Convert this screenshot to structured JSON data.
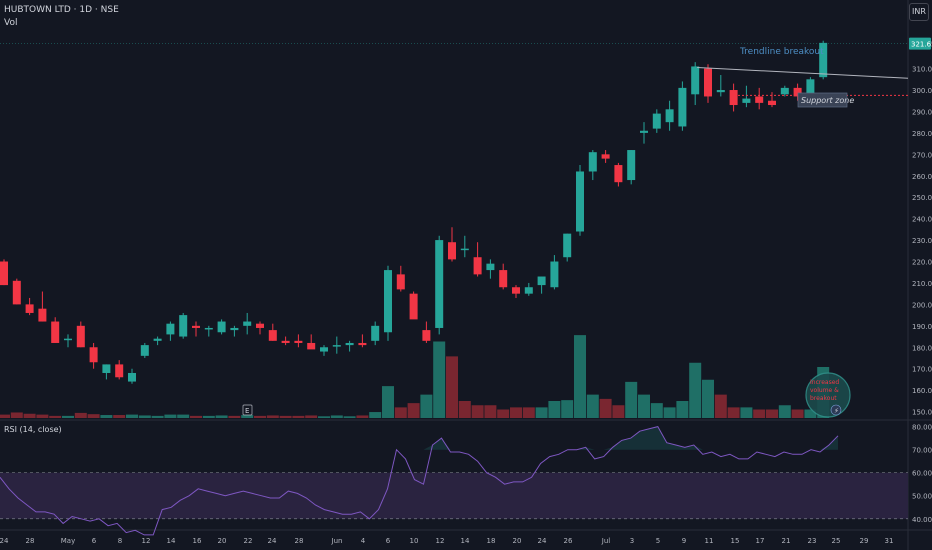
{
  "header": {
    "symbol": "HUBTOWN LTD · 1D · NSE",
    "volume_label": "Vol",
    "currency_button": "INR",
    "rsi_label": "RSI (14, close)"
  },
  "colors": {
    "background": "#131722",
    "up": "#26a69a",
    "down": "#f23645",
    "vol_up": "#1f6f66",
    "vol_down": "#7a2630",
    "rsi_line": "#7e57c2",
    "rsi_band": "#2a2340",
    "annotation_text": "#4d8ec4",
    "support_line": "#f23645"
  },
  "chart_data": [
    {
      "type": "candlestick",
      "title": "HUBTOWN LTD · 1D · NSE",
      "price_axis": {
        "ticks": [
          150,
          160,
          170,
          180,
          190,
          200,
          210,
          220,
          230,
          240,
          250,
          260,
          270,
          280,
          290,
          300,
          310
        ],
        "tick_labels": [
          "150.00",
          "160.00",
          "170.00",
          "180.00",
          "190.00",
          "200.00",
          "210.00",
          "220.00",
          "230.00",
          "240.00",
          "250.00",
          "260.00",
          "270.00",
          "280.00",
          "290.00",
          "300.00",
          "310.00"
        ],
        "last_price_label": "321.65",
        "range": [
          147,
          328
        ]
      },
      "x_axis_labels": [
        "24",
        "28",
        "May",
        "6",
        "8",
        "12",
        "14",
        "16",
        "20",
        "22",
        "24",
        "28",
        "Jun",
        "4",
        "6",
        "10",
        "12",
        "14",
        "18",
        "20",
        "24",
        "26",
        "Jul",
        "3",
        "5",
        "9",
        "11",
        "15",
        "17",
        "21",
        "23",
        "25",
        "29",
        "31"
      ],
      "candles": [
        {
          "o": 220,
          "h": 221,
          "l": 209,
          "c": 209
        },
        {
          "o": 211,
          "h": 212,
          "l": 200,
          "c": 200
        },
        {
          "o": 200,
          "h": 203,
          "l": 195,
          "c": 196
        },
        {
          "o": 198,
          "h": 206,
          "l": 192,
          "c": 192
        },
        {
          "o": 192,
          "h": 194,
          "l": 182,
          "c": 182
        },
        {
          "o": 184,
          "h": 186,
          "l": 180,
          "c": 184
        },
        {
          "o": 190,
          "h": 192,
          "l": 180,
          "c": 180
        },
        {
          "o": 180,
          "h": 182,
          "l": 170,
          "c": 173
        },
        {
          "o": 168,
          "h": 172,
          "l": 165,
          "c": 172
        },
        {
          "o": 172,
          "h": 174,
          "l": 165,
          "c": 166
        },
        {
          "o": 164,
          "h": 170,
          "l": 163,
          "c": 168
        },
        {
          "o": 176,
          "h": 182,
          "l": 175,
          "c": 181
        },
        {
          "o": 183,
          "h": 185,
          "l": 181,
          "c": 184
        },
        {
          "o": 186,
          "h": 192,
          "l": 183,
          "c": 191
        },
        {
          "o": 185,
          "h": 196,
          "l": 184,
          "c": 195
        },
        {
          "o": 190,
          "h": 192,
          "l": 185,
          "c": 189
        },
        {
          "o": 189,
          "h": 190,
          "l": 185,
          "c": 189
        },
        {
          "o": 187,
          "h": 193,
          "l": 186,
          "c": 192
        },
        {
          "o": 188,
          "h": 190,
          "l": 185,
          "c": 189
        },
        {
          "o": 190,
          "h": 196,
          "l": 186,
          "c": 192
        },
        {
          "o": 191,
          "h": 192,
          "l": 186,
          "c": 189
        },
        {
          "o": 188,
          "h": 191,
          "l": 183,
          "c": 183
        },
        {
          "o": 183,
          "h": 185,
          "l": 181,
          "c": 182
        },
        {
          "o": 183,
          "h": 186,
          "l": 180,
          "c": 182
        },
        {
          "o": 182,
          "h": 186,
          "l": 180,
          "c": 179
        },
        {
          "o": 178,
          "h": 181,
          "l": 176,
          "c": 180
        },
        {
          "o": 181,
          "h": 185,
          "l": 177,
          "c": 181
        },
        {
          "o": 181,
          "h": 183,
          "l": 178,
          "c": 182
        },
        {
          "o": 182,
          "h": 186,
          "l": 180,
          "c": 181
        },
        {
          "o": 183,
          "h": 192,
          "l": 181,
          "c": 190
        },
        {
          "o": 187,
          "h": 218,
          "l": 183,
          "c": 216
        },
        {
          "o": 214,
          "h": 218,
          "l": 206,
          "c": 207
        },
        {
          "o": 205,
          "h": 206,
          "l": 194,
          "c": 193
        },
        {
          "o": 188,
          "h": 192,
          "l": 182,
          "c": 183
        },
        {
          "o": 189,
          "h": 232,
          "l": 186,
          "c": 230
        },
        {
          "o": 229,
          "h": 236,
          "l": 220,
          "c": 221
        },
        {
          "o": 226,
          "h": 232,
          "l": 222,
          "c": 226
        },
        {
          "o": 222,
          "h": 229,
          "l": 213,
          "c": 214
        },
        {
          "o": 216,
          "h": 221,
          "l": 212,
          "c": 219
        },
        {
          "o": 216,
          "h": 219,
          "l": 207,
          "c": 208
        },
        {
          "o": 208,
          "h": 209,
          "l": 203,
          "c": 205
        },
        {
          "o": 205,
          "h": 210,
          "l": 204,
          "c": 208
        },
        {
          "o": 209,
          "h": 213,
          "l": 205,
          "c": 213
        },
        {
          "o": 208,
          "h": 223,
          "l": 207,
          "c": 220
        },
        {
          "o": 222,
          "h": 233,
          "l": 220,
          "c": 233
        },
        {
          "o": 234,
          "h": 265,
          "l": 232,
          "c": 262
        },
        {
          "o": 262,
          "h": 272,
          "l": 258,
          "c": 271
        },
        {
          "o": 270,
          "h": 272,
          "l": 266,
          "c": 268
        },
        {
          "o": 265,
          "h": 266,
          "l": 255,
          "c": 257
        },
        {
          "o": 258,
          "h": 272,
          "l": 256,
          "c": 272
        },
        {
          "o": 280,
          "h": 285,
          "l": 275,
          "c": 281
        },
        {
          "o": 282,
          "h": 291,
          "l": 280,
          "c": 289
        },
        {
          "o": 285,
          "h": 295,
          "l": 281,
          "c": 291
        },
        {
          "o": 283,
          "h": 304,
          "l": 281,
          "c": 301
        },
        {
          "o": 298,
          "h": 313,
          "l": 293,
          "c": 311
        },
        {
          "o": 310,
          "h": 312,
          "l": 294,
          "c": 297
        },
        {
          "o": 299,
          "h": 307,
          "l": 297,
          "c": 300
        },
        {
          "o": 300,
          "h": 303,
          "l": 290,
          "c": 293
        },
        {
          "o": 294,
          "h": 302,
          "l": 292,
          "c": 296
        },
        {
          "o": 297,
          "h": 301,
          "l": 291,
          "c": 294
        },
        {
          "o": 295,
          "h": 299,
          "l": 292,
          "c": 293
        },
        {
          "o": 298,
          "h": 302,
          "l": 297,
          "c": 301
        },
        {
          "o": 301,
          "h": 303,
          "l": 295,
          "c": 297
        },
        {
          "o": 298,
          "h": 306,
          "l": 296,
          "c": 305
        },
        {
          "o": 306,
          "h": 323,
          "l": 305,
          "c": 322
        }
      ],
      "volume": [
        {
          "v": 0.8,
          "up": false
        },
        {
          "v": 1.3,
          "up": false
        },
        {
          "v": 1.0,
          "up": false
        },
        {
          "v": 0.8,
          "up": false
        },
        {
          "v": 0.5,
          "up": false
        },
        {
          "v": 0.5,
          "up": true
        },
        {
          "v": 1.2,
          "up": false
        },
        {
          "v": 0.9,
          "up": false
        },
        {
          "v": 0.7,
          "up": true
        },
        {
          "v": 0.7,
          "up": false
        },
        {
          "v": 0.8,
          "up": true
        },
        {
          "v": 0.6,
          "up": true
        },
        {
          "v": 0.5,
          "up": true
        },
        {
          "v": 0.8,
          "up": true
        },
        {
          "v": 0.8,
          "up": true
        },
        {
          "v": 0.5,
          "up": false
        },
        {
          "v": 0.5,
          "up": true
        },
        {
          "v": 0.6,
          "up": true
        },
        {
          "v": 0.5,
          "up": false
        },
        {
          "v": 0.7,
          "up": true
        },
        {
          "v": 0.5,
          "up": false
        },
        {
          "v": 0.6,
          "up": false
        },
        {
          "v": 0.5,
          "up": false
        },
        {
          "v": 0.5,
          "up": false
        },
        {
          "v": 0.6,
          "up": false
        },
        {
          "v": 0.4,
          "up": true
        },
        {
          "v": 0.6,
          "up": true
        },
        {
          "v": 0.4,
          "up": true
        },
        {
          "v": 0.6,
          "up": false
        },
        {
          "v": 1.4,
          "up": true
        },
        {
          "v": 7.5,
          "up": true
        },
        {
          "v": 2.5,
          "up": false
        },
        {
          "v": 3.5,
          "up": false
        },
        {
          "v": 5.5,
          "up": true
        },
        {
          "v": 18.0,
          "up": true
        },
        {
          "v": 14.5,
          "up": false
        },
        {
          "v": 4.0,
          "up": false
        },
        {
          "v": 3.0,
          "up": false
        },
        {
          "v": 3.0,
          "up": false
        },
        {
          "v": 2.0,
          "up": false
        },
        {
          "v": 2.5,
          "up": false
        },
        {
          "v": 2.5,
          "up": false
        },
        {
          "v": 2.5,
          "up": true
        },
        {
          "v": 4.0,
          "up": true
        },
        {
          "v": 4.2,
          "up": true
        },
        {
          "v": 19.5,
          "up": true
        },
        {
          "v": 5.5,
          "up": true
        },
        {
          "v": 4.5,
          "up": false
        },
        {
          "v": 3.0,
          "up": false
        },
        {
          "v": 8.5,
          "up": true
        },
        {
          "v": 5.5,
          "up": true
        },
        {
          "v": 3.5,
          "up": true
        },
        {
          "v": 2.5,
          "up": true
        },
        {
          "v": 4.0,
          "up": true
        },
        {
          "v": 13.0,
          "up": true
        },
        {
          "v": 9.0,
          "up": true
        },
        {
          "v": 5.5,
          "up": false
        },
        {
          "v": 2.5,
          "up": false
        },
        {
          "v": 2.5,
          "up": true
        },
        {
          "v": 2.0,
          "up": false
        },
        {
          "v": 2.0,
          "up": false
        },
        {
          "v": 3.0,
          "up": true
        },
        {
          "v": 2.0,
          "up": false
        },
        {
          "v": 2.0,
          "up": true
        },
        {
          "v": 12.0,
          "up": true
        }
      ],
      "annotations": {
        "trendline_label": "Trendline breakout",
        "support_label": "Support zone",
        "support_level": 297.5,
        "trendline_start": {
          "x_index": 54,
          "price": 310.5
        },
        "trendline_end_price": 305.5,
        "volume_note": [
          "Increased",
          "volume &",
          "breakout"
        ],
        "chart_marker": "E"
      }
    },
    {
      "type": "line",
      "title": "RSI (14, close)",
      "y_ticks": [
        40,
        50,
        60,
        70,
        80
      ],
      "y_tick_labels": [
        "40.00",
        "50.00",
        "60.00",
        "70.00",
        "80.00"
      ],
      "ylim": [
        36,
        82
      ],
      "band": [
        40,
        60
      ],
      "rsi": [
        58,
        53,
        49,
        46,
        43,
        43,
        42,
        38,
        41,
        40,
        39,
        40,
        37,
        38,
        34,
        35,
        33,
        33,
        44,
        45,
        48,
        50,
        53,
        52,
        51,
        50,
        51,
        52,
        51,
        50,
        49,
        49,
        52,
        51,
        49,
        46,
        44,
        43,
        42,
        42,
        43,
        40,
        44,
        53,
        70,
        66,
        57,
        55,
        72,
        75,
        69,
        69,
        68,
        65,
        60,
        58,
        55,
        56,
        56,
        58,
        64,
        67,
        68,
        70,
        70,
        71,
        66,
        67,
        71,
        74,
        75,
        78,
        79,
        80,
        73,
        72,
        71,
        72,
        68,
        69,
        67,
        68,
        66,
        66,
        69,
        68,
        67,
        69,
        68,
        68,
        70,
        69,
        72,
        76
      ]
    }
  ]
}
